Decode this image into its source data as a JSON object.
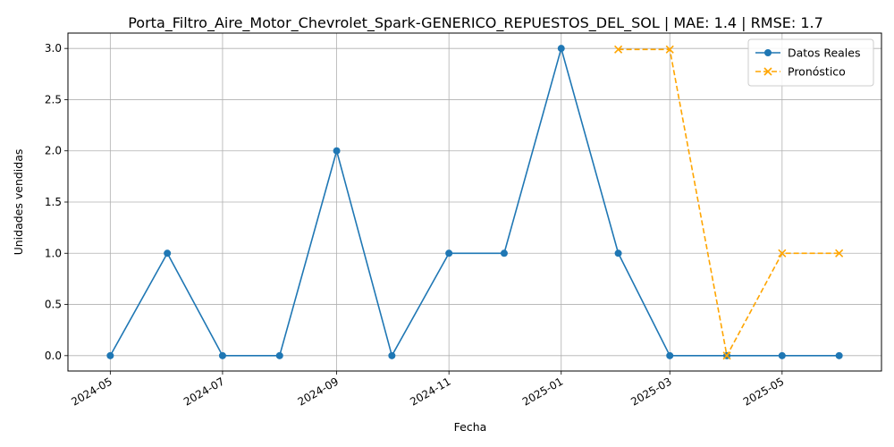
{
  "chart_data": {
    "type": "line",
    "title": "Porta_Filtro_Aire_Motor_Chevrolet_Spark-GENERICO_REPUESTOS_DEL_SOL | MAE: 1.4 | RMSE: 1.7",
    "xlabel": "Fecha",
    "ylabel": "Unidades vendidas",
    "xlim": [
      "2024-04-08",
      "2025-06-24"
    ],
    "ylim": [
      -0.15,
      3.15
    ],
    "x_ticks": [
      "2024-05-01",
      "2024-07-01",
      "2024-09-01",
      "2024-11-01",
      "2025-01-01",
      "2025-03-01",
      "2025-05-01"
    ],
    "x_tick_labels": [
      "2024-05",
      "2024-07",
      "2024-09",
      "2024-11",
      "2025-01",
      "2025-03",
      "2025-05"
    ],
    "y_ticks": [
      0.0,
      0.5,
      1.0,
      1.5,
      2.0,
      2.5,
      3.0
    ],
    "y_tick_labels": [
      "0.0",
      "0.5",
      "1.0",
      "1.5",
      "2.0",
      "2.5",
      "3.0"
    ],
    "grid": true,
    "legend_position": "top-right",
    "series": [
      {
        "name": "Datos Reales",
        "color": "#1f77b4",
        "style": "solid",
        "marker": "circle",
        "x": [
          "2024-05-01",
          "2024-06-01",
          "2024-07-01",
          "2024-08-01",
          "2024-09-01",
          "2024-10-01",
          "2024-11-01",
          "2024-12-01",
          "2025-01-01",
          "2025-02-01",
          "2025-03-01",
          "2025-04-01",
          "2025-05-01",
          "2025-06-01"
        ],
        "values": [
          0,
          1,
          0,
          0,
          2,
          0,
          1,
          1,
          3,
          1,
          0,
          0,
          0,
          0
        ]
      },
      {
        "name": "Pronóstico",
        "color": "#ffa500",
        "style": "dashed",
        "marker": "x",
        "x": [
          "2025-02-01",
          "2025-03-01",
          "2025-04-01",
          "2025-05-01",
          "2025-06-01"
        ],
        "values": [
          2.99,
          2.99,
          0.0,
          1.0,
          1.0
        ]
      }
    ]
  }
}
